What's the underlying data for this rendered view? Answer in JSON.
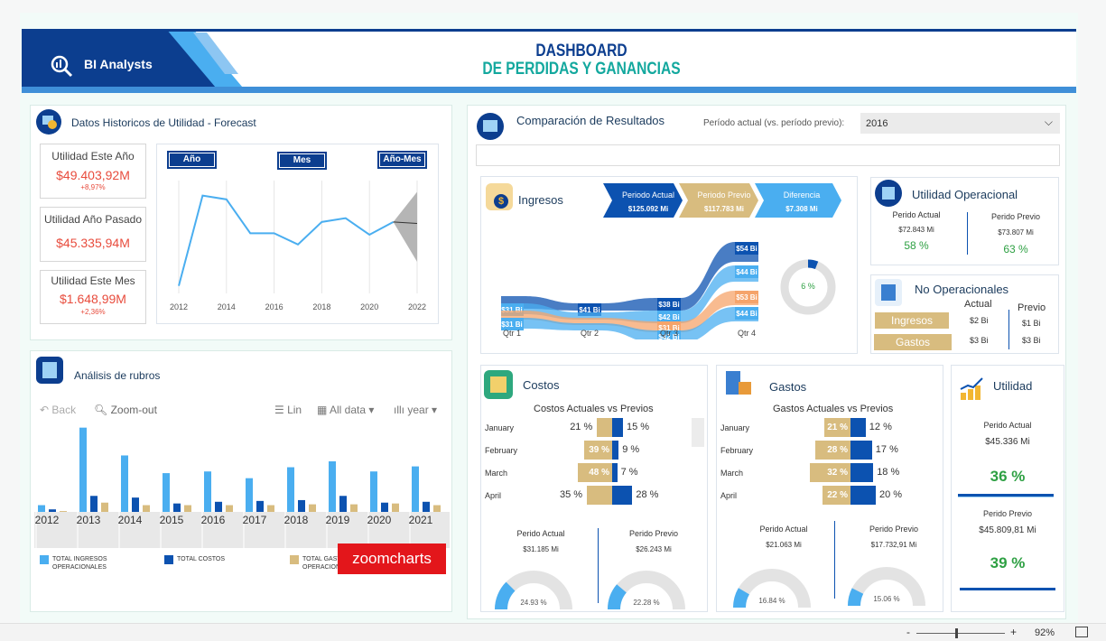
{
  "brand": {
    "name": "BI Analysts"
  },
  "header": {
    "title_line1": "DASHBOARD",
    "title_line2": "DE PERDIDAS Y GANANCIAS"
  },
  "historicos": {
    "title": "Datos Historicos de Utilidad - Forecast",
    "kpis": [
      {
        "label": "Utilidad Este Año",
        "value": "$49.403,92M",
        "delta": "+8,97%"
      },
      {
        "label": "Utilidad Año Pasado",
        "value": "$45.335,94M",
        "delta": ""
      },
      {
        "label": "Utilidad Este Mes",
        "value": "$1.648,99M",
        "delta": "+2,36%"
      }
    ],
    "buttons": [
      "Año",
      "Mes",
      "Año-Mes"
    ]
  },
  "chart_data": [
    {
      "type": "line",
      "title": "",
      "x": [
        2012,
        2013,
        2014,
        2015,
        2016,
        2017,
        2018,
        2019,
        2020,
        2021,
        2022
      ],
      "tick_labels": [
        "2012",
        "2014",
        "2016",
        "2018",
        "2020",
        "2022"
      ],
      "series": [
        {
          "values": [
            1,
            13,
            12.5,
            8,
            8,
            6.5,
            9.5,
            10,
            7.8,
            9.5,
            null
          ]
        },
        {
          "values": [
            null,
            null,
            null,
            null,
            null,
            null,
            null,
            null,
            null,
            9.5,
            9.3
          ]
        }
      ],
      "forecast_band": {
        "x": [
          2021,
          2022
        ],
        "low": [
          9.5,
          4.2
        ],
        "high": [
          9.5,
          13.5
        ]
      },
      "ylim": [
        0,
        15
      ],
      "grid": "vertical"
    },
    {
      "type": "bar",
      "title": "",
      "categories": [
        "2012",
        "2013",
        "2014",
        "2015",
        "2016",
        "2017",
        "2018",
        "2019",
        "2020",
        "2021"
      ],
      "series": [
        {
          "name": "TOTAL INGRESOS OPERACIONALES",
          "color": "#4aaef0",
          "values": [
            8,
            100,
            67,
            46,
            48,
            40,
            53,
            60,
            48,
            54
          ]
        },
        {
          "name": "TOTAL COSTOS",
          "color": "#0c52b0",
          "values": [
            3,
            19,
            17,
            10,
            12,
            13,
            14,
            19,
            11,
            12
          ]
        },
        {
          "name": "TOTAL GASTOS OPERACIONALES",
          "color": "#d8bc7f",
          "values": [
            1,
            11,
            8,
            8,
            8,
            8,
            9,
            9,
            10,
            8
          ]
        }
      ],
      "ylim": [
        0,
        105
      ]
    },
    {
      "type": "area",
      "title": "",
      "categories": [
        "Qtr 1",
        "Qtr 2",
        "Qtr 3",
        "Qtr 4"
      ],
      "series": [
        {
          "color": "#0c52b0",
          "labels": [
            "",
            "$41 Bi",
            "$38 Bi",
            "$54 Bi"
          ]
        },
        {
          "color": "#4aaef0",
          "labels": [
            "$31 Bi",
            "",
            "$42 Bi",
            "$44 Bi"
          ]
        },
        {
          "color": "#f5a46b",
          "labels": [
            "",
            "",
            "$31 Bi",
            "$53 Bi"
          ]
        },
        {
          "color": "#4aaef0",
          "labels": [
            "$31 Bi",
            "",
            "$42 Bi",
            "$44 Bi"
          ]
        }
      ]
    }
  ],
  "rubros": {
    "title": "Análisis de rubros",
    "toolbar": {
      "back": "Back",
      "zoom_out": "Zoom-out",
      "lin": "Lin",
      "all_data": "All data",
      "year": "year"
    },
    "legend": [
      "TOTAL INGRESOS OPERACIONALES",
      "TOTAL COSTOS",
      "TOTAL GASTOS OPERACIONALES"
    ],
    "watermark": "zoomcharts"
  },
  "comparacion": {
    "title": "Comparación de Resultados",
    "period_label": "Período actual (vs. período previo):",
    "period_value": "2016"
  },
  "ingresos": {
    "title": "Ingresos",
    "chevrons": [
      {
        "label": "Periodo Actual",
        "value": "$125.092 Mi"
      },
      {
        "label": "Periodo Previo",
        "value": "$117.783 Mi"
      },
      {
        "label": "Diferencia",
        "value": "$7.308 Mi"
      }
    ],
    "donut_label": "6 %",
    "donut_fraction": 0.06
  },
  "util_op": {
    "title": "Utilidad Operacional",
    "actual_label": "Perido Actual",
    "actual_value": "$72.843 Mi",
    "actual_pct": "58 %",
    "prev_label": "Perido Previo",
    "prev_value": "$73.807 Mi",
    "prev_pct": "63 %"
  },
  "no_op": {
    "title": "No Operacionales",
    "col_actual": "Actual",
    "col_prev": "Previo",
    "rows": [
      {
        "label": "Ingresos",
        "actual": "$2 Bi",
        "prev": "$1 Bi"
      },
      {
        "label": "Gastos",
        "actual": "$3 Bi",
        "prev": "$3 Bi"
      }
    ]
  },
  "costos": {
    "title": "Costos",
    "subtitle": "Costos  Actuales vs Previos",
    "rows": [
      {
        "month": "January",
        "left": "21 %",
        "right": "15 %",
        "lv": 21,
        "rv": 15
      },
      {
        "month": "February",
        "left": "39 %",
        "right": "9 %",
        "lv": 39,
        "rv": 9
      },
      {
        "month": "March",
        "left": "48 %",
        "right": "7 %",
        "lv": 48,
        "rv": 7
      },
      {
        "month": "April",
        "left": "35 %",
        "right": "28 %",
        "lv": 35,
        "rv": 28
      }
    ],
    "actual_label": "Perido Actual",
    "actual_value": "$31.185 Mi",
    "prev_label": "Perido Previo",
    "prev_value": "$26.243 Mi",
    "gauge1": "24.93 %",
    "gauge1_v": 0.2493,
    "gauge2": "22.28 %",
    "gauge2_v": 0.2228
  },
  "gastos": {
    "title": "Gastos",
    "subtitle": "Gastos  Actuales vs Previos",
    "rows": [
      {
        "month": "January",
        "left": "21 %",
        "right": "12 %",
        "lv": 21,
        "rv": 12
      },
      {
        "month": "February",
        "left": "28 %",
        "right": "17 %",
        "lv": 28,
        "rv": 17
      },
      {
        "month": "March",
        "left": "32 %",
        "right": "18 %",
        "lv": 32,
        "rv": 18
      },
      {
        "month": "April",
        "left": "22 %",
        "right": "20 %",
        "lv": 22,
        "rv": 20
      }
    ],
    "actual_label": "Perido Actual",
    "actual_value": "$21.063 Mi",
    "prev_label": "Perido Previo",
    "prev_value": "$17.732,91 Mi",
    "gauge1": "16.84 %",
    "gauge1_v": 0.1684,
    "gauge2": "15.06 %",
    "gauge2_v": 0.1506
  },
  "utilidad": {
    "title": "Utilidad",
    "actual_label": "Perido Actual",
    "actual_value": "$45.336 Mi",
    "actual_pct": "36 %",
    "prev_label": "Perido Previo",
    "prev_value": "$45.809,81 Mi",
    "prev_pct": "39 %"
  },
  "statusbar": {
    "minus": "-",
    "plus": "+",
    "zoom": "92%"
  }
}
